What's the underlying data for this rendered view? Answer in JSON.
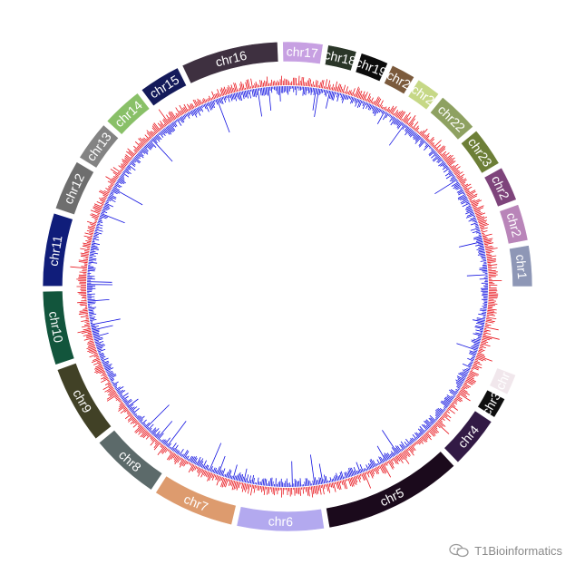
{
  "chromosomes": [
    {
      "label": "chr1",
      "size": 47,
      "color": "#8e97b6",
      "text": "#ffffff"
    },
    {
      "label": "chr2",
      "size": 42,
      "color": "#b985b9",
      "text": "#ffffff"
    },
    {
      "label": "chr2",
      "size": 40,
      "color": "#7e447b",
      "text": "#ffffff"
    },
    {
      "label": "chr23",
      "size": 45,
      "color": "#6d7f37",
      "text": "#ffffff"
    },
    {
      "label": "chr22",
      "size": 48,
      "color": "#8ea161",
      "text": "#ffffff"
    },
    {
      "label": "chr2",
      "size": 28,
      "color": "#c6d886",
      "text": "#ffffff"
    },
    {
      "label": "chr2",
      "size": 28,
      "color": "#7b5a3c",
      "text": "#ffffff"
    },
    {
      "label": "chr19",
      "size": 32,
      "color": "#0c0c0c",
      "text": "#ffffff"
    },
    {
      "label": "chr18",
      "size": 33,
      "color": "#2a3628",
      "text": "#ffffff"
    },
    {
      "label": "chr17",
      "size": 46,
      "color": "#c7a0e2",
      "text": "#ffffff"
    },
    {
      "label": "chr16",
      "size": 112,
      "color": "#3e3040",
      "text": "#ffffff"
    },
    {
      "label": "chr15",
      "size": 48,
      "color": "#141a5a",
      "text": "#ffffff"
    },
    {
      "label": "chr14",
      "size": 47,
      "color": "#89c068",
      "text": "#ffffff"
    },
    {
      "label": "chr13",
      "size": 46,
      "color": "#838383",
      "text": "#ffffff"
    },
    {
      "label": "chr12",
      "size": 58,
      "color": "#6e6e6e",
      "text": "#ffffff"
    },
    {
      "label": "chr11",
      "size": 84,
      "color": "#101d7a",
      "text": "#ffffff"
    },
    {
      "label": "chr10",
      "size": 85,
      "color": "#12553c",
      "text": "#ffffff"
    },
    {
      "label": "chr9",
      "size": 90,
      "color": "#414126",
      "text": "#ffffff"
    },
    {
      "label": "chr8",
      "size": 80,
      "color": "#5c6a6a",
      "text": "#ffffff"
    },
    {
      "label": "chr7",
      "size": 94,
      "color": "#dd9b6e",
      "text": "#ffffff"
    },
    {
      "label": "chr6",
      "size": 100,
      "color": "#b3a9ef",
      "text": "#ffffff"
    },
    {
      "label": "chr5",
      "size": 160,
      "color": "#1b0a1c",
      "text": "#ffffff"
    },
    {
      "label": "chr4",
      "size": 60,
      "color": "#321a45",
      "text": "#ffffff"
    },
    {
      "label": "chr3",
      "size": 24,
      "color": "#0f0f0f",
      "text": "#ffffff"
    },
    {
      "label": "chr",
      "size": 24,
      "color": "#f1e7ec",
      "text": "#ffffff"
    }
  ],
  "tracks": [
    {
      "color": "#e8121a"
    },
    {
      "color": "#1010e0"
    }
  ],
  "watermark": {
    "text": "T1Bioinformatics"
  }
}
